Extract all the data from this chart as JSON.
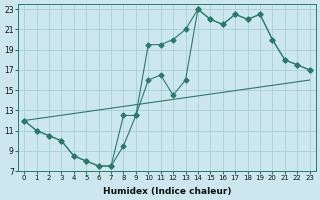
{
  "xlabel": "Humidex (Indice chaleur)",
  "xlim": [
    -0.5,
    23.5
  ],
  "ylim": [
    7,
    23.5
  ],
  "yticks": [
    7,
    9,
    11,
    13,
    15,
    17,
    19,
    21,
    23
  ],
  "xticks": [
    0,
    1,
    2,
    3,
    4,
    5,
    6,
    7,
    8,
    9,
    10,
    11,
    12,
    13,
    14,
    15,
    16,
    17,
    18,
    19,
    20,
    21,
    22,
    23
  ],
  "bg_color": "#cce8ee",
  "line_color": "#2a7a6a",
  "grid_color": "#aacfd8",
  "lines": [
    {
      "x": [
        0,
        1,
        2,
        3,
        4,
        5,
        6,
        7,
        8,
        9,
        10,
        11,
        12,
        13,
        14,
        15,
        16,
        17,
        18,
        19,
        20,
        21,
        22,
        23
      ],
      "y": [
        12,
        11,
        10.5,
        10,
        8.5,
        8,
        7.5,
        7.5,
        12.5,
        12.5,
        16,
        16.5,
        14.5,
        16,
        23,
        22,
        21.5,
        22.5,
        22,
        22.5,
        20,
        18,
        17.5,
        17
      ],
      "marker": true
    },
    {
      "x": [
        0,
        1,
        2,
        3,
        4,
        5,
        6,
        7,
        8,
        9,
        10,
        11,
        12,
        13,
        14,
        15,
        16,
        17,
        18,
        19,
        20,
        21,
        22,
        23
      ],
      "y": [
        12,
        11,
        10.5,
        10,
        8.5,
        8,
        7.5,
        7.5,
        9.5,
        12.5,
        19.5,
        19.5,
        20,
        21,
        23,
        22,
        21.5,
        22.5,
        22,
        22.5,
        20,
        18,
        17.5,
        17
      ],
      "marker": true
    },
    {
      "x": [
        0,
        23
      ],
      "y": [
        12,
        16
      ],
      "marker": false
    }
  ]
}
